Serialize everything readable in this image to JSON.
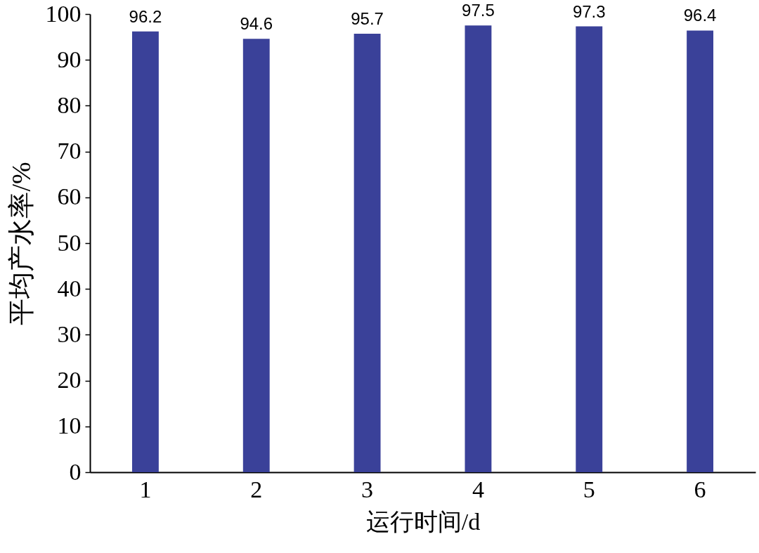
{
  "chart_data": {
    "type": "bar",
    "xlabel": "运行时间/d",
    "ylabel": "平均产水率/%",
    "categories": [
      "1",
      "2",
      "3",
      "4",
      "5",
      "6"
    ],
    "values": [
      96.2,
      94.6,
      95.7,
      97.5,
      97.3,
      96.4
    ],
    "color": "#3a4199",
    "ylim": [
      0,
      100
    ],
    "yticks": [
      0,
      10,
      20,
      30,
      40,
      50,
      60,
      70,
      80,
      90,
      100
    ],
    "data_labels": true,
    "grid": false
  }
}
